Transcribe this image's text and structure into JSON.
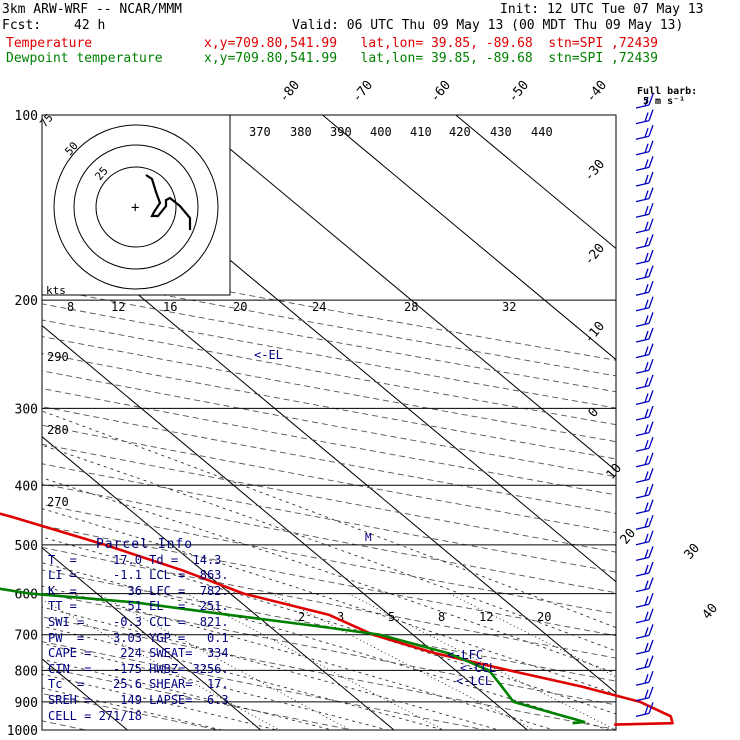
{
  "header": {
    "model": "3km ARW-WRF -- NCAR/MMM",
    "init": "Init: 12 UTC Tue 07 May 13",
    "fcst_label": "Fcst:",
    "fcst_value": "42 h",
    "valid": "Valid: 06 UTC Thu 09 May 13 (00 MDT Thu 09 May 13)",
    "temp_line": {
      "label": "Temperature",
      "info": "x,y=709.80,541.99   lat,lon= 39.85, -89.68  stn=SPI ,72439",
      "color": "#e00000"
    },
    "dew_line": {
      "label": "Dewpoint temperature",
      "info": "x,y=709.80,541.99   lat,lon= 39.85, -89.68  stn=SPI ,72439",
      "color": "#008000"
    }
  },
  "legend_barb": {
    "title": "Full barb:",
    "value": "5 m s⁻¹"
  },
  "chart_data": {
    "type": "line",
    "title": "",
    "pressure_levels": [
      100,
      200,
      300,
      400,
      500,
      600,
      700,
      800,
      900,
      1000
    ],
    "top_temp_labels": [
      "-80",
      "-70",
      "-60",
      "-50",
      "-40"
    ],
    "right_temp_labels": [
      "-30",
      "-20",
      "-10",
      "0",
      "10",
      "20",
      "30",
      "40"
    ],
    "theta_e_labels": [
      "370",
      "380",
      "390",
      "400",
      "410",
      "420",
      "430",
      "440"
    ],
    "mixing_ratio_top_labels": [
      "8",
      "12",
      "16",
      "20",
      "24",
      "28",
      "32"
    ],
    "mixing_ratio_low_labels": [
      "2",
      "3",
      "5",
      "8",
      "12",
      "20"
    ],
    "theta_labels": [
      "290",
      "280",
      "270"
    ],
    "series": [
      {
        "name": "Temperature",
        "color": "#e00000",
        "points": [
          [
            100,
            -60
          ],
          [
            140,
            -52
          ],
          [
            160,
            -51
          ],
          [
            170,
            -52
          ],
          [
            190,
            -50
          ],
          [
            200,
            -48
          ],
          [
            220,
            -44
          ],
          [
            250,
            -40
          ],
          [
            300,
            -31
          ],
          [
            350,
            -23
          ],
          [
            400,
            -15.5
          ],
          [
            450,
            -9.5
          ],
          [
            500,
            -5
          ],
          [
            550,
            -1.5
          ],
          [
            600,
            1
          ],
          [
            650,
            5.5
          ],
          [
            700,
            7
          ],
          [
            750,
            10
          ],
          [
            800,
            14
          ],
          [
            850,
            18
          ],
          [
            900,
            21
          ],
          [
            950,
            22
          ],
          [
            975,
            21.5
          ],
          [
            980,
            17
          ]
        ]
      },
      {
        "name": "Dewpoint temperature",
        "color": "#008000",
        "points": [
          [
            100,
            -85
          ],
          [
            110,
            -87
          ],
          [
            140,
            -83
          ],
          [
            200,
            -74
          ],
          [
            230,
            -72
          ],
          [
            260,
            -71
          ],
          [
            300,
            -60
          ],
          [
            340,
            -48
          ],
          [
            380,
            -55
          ],
          [
            400,
            -57
          ],
          [
            450,
            -48
          ],
          [
            500,
            -35
          ],
          [
            550,
            -24
          ],
          [
            600,
            -15
          ],
          [
            620,
            -8
          ],
          [
            650,
            -2
          ],
          [
            680,
            4
          ],
          [
            700,
            7.5
          ],
          [
            750,
            11
          ],
          [
            800,
            12.5
          ],
          [
            850,
            12
          ],
          [
            900,
            11.5
          ],
          [
            950,
            14
          ],
          [
            970,
            15
          ],
          [
            975,
            14
          ]
        ]
      }
    ],
    "annotations": [
      "<-EL",
      "<-LFC",
      "<-CCL",
      "<-LCL",
      "M"
    ],
    "hodograph": {
      "ring_labels": [
        "25",
        "50",
        "75"
      ],
      "unit": "kts"
    }
  },
  "parcel_info": {
    "title": "Parcel Info",
    "rows": [
      "T  =     17.0 Td =  14.3",
      "LI =     -1.1 LCL =  863.",
      "K  =       36 LFC =  782.",
      "TT =       51 EL  =  251.",
      "SWI =    -0.3 CCL =  821.",
      "PW  =    3.03 YGP =   0.1",
      "CAPE =    224 SWEAT=  334",
      "CIN  =   -175 HWBZ= 3256.",
      "Tc  =    25.6 SHEAR=  17.",
      "SREH =    149 LAPSE=  6.3",
      "CELL = 271/18"
    ]
  },
  "colors": {
    "axis": "#000000",
    "temperature": "#e00000",
    "dewpoint": "#008000",
    "barbs": "#0000c0",
    "parcel": "#000080"
  }
}
